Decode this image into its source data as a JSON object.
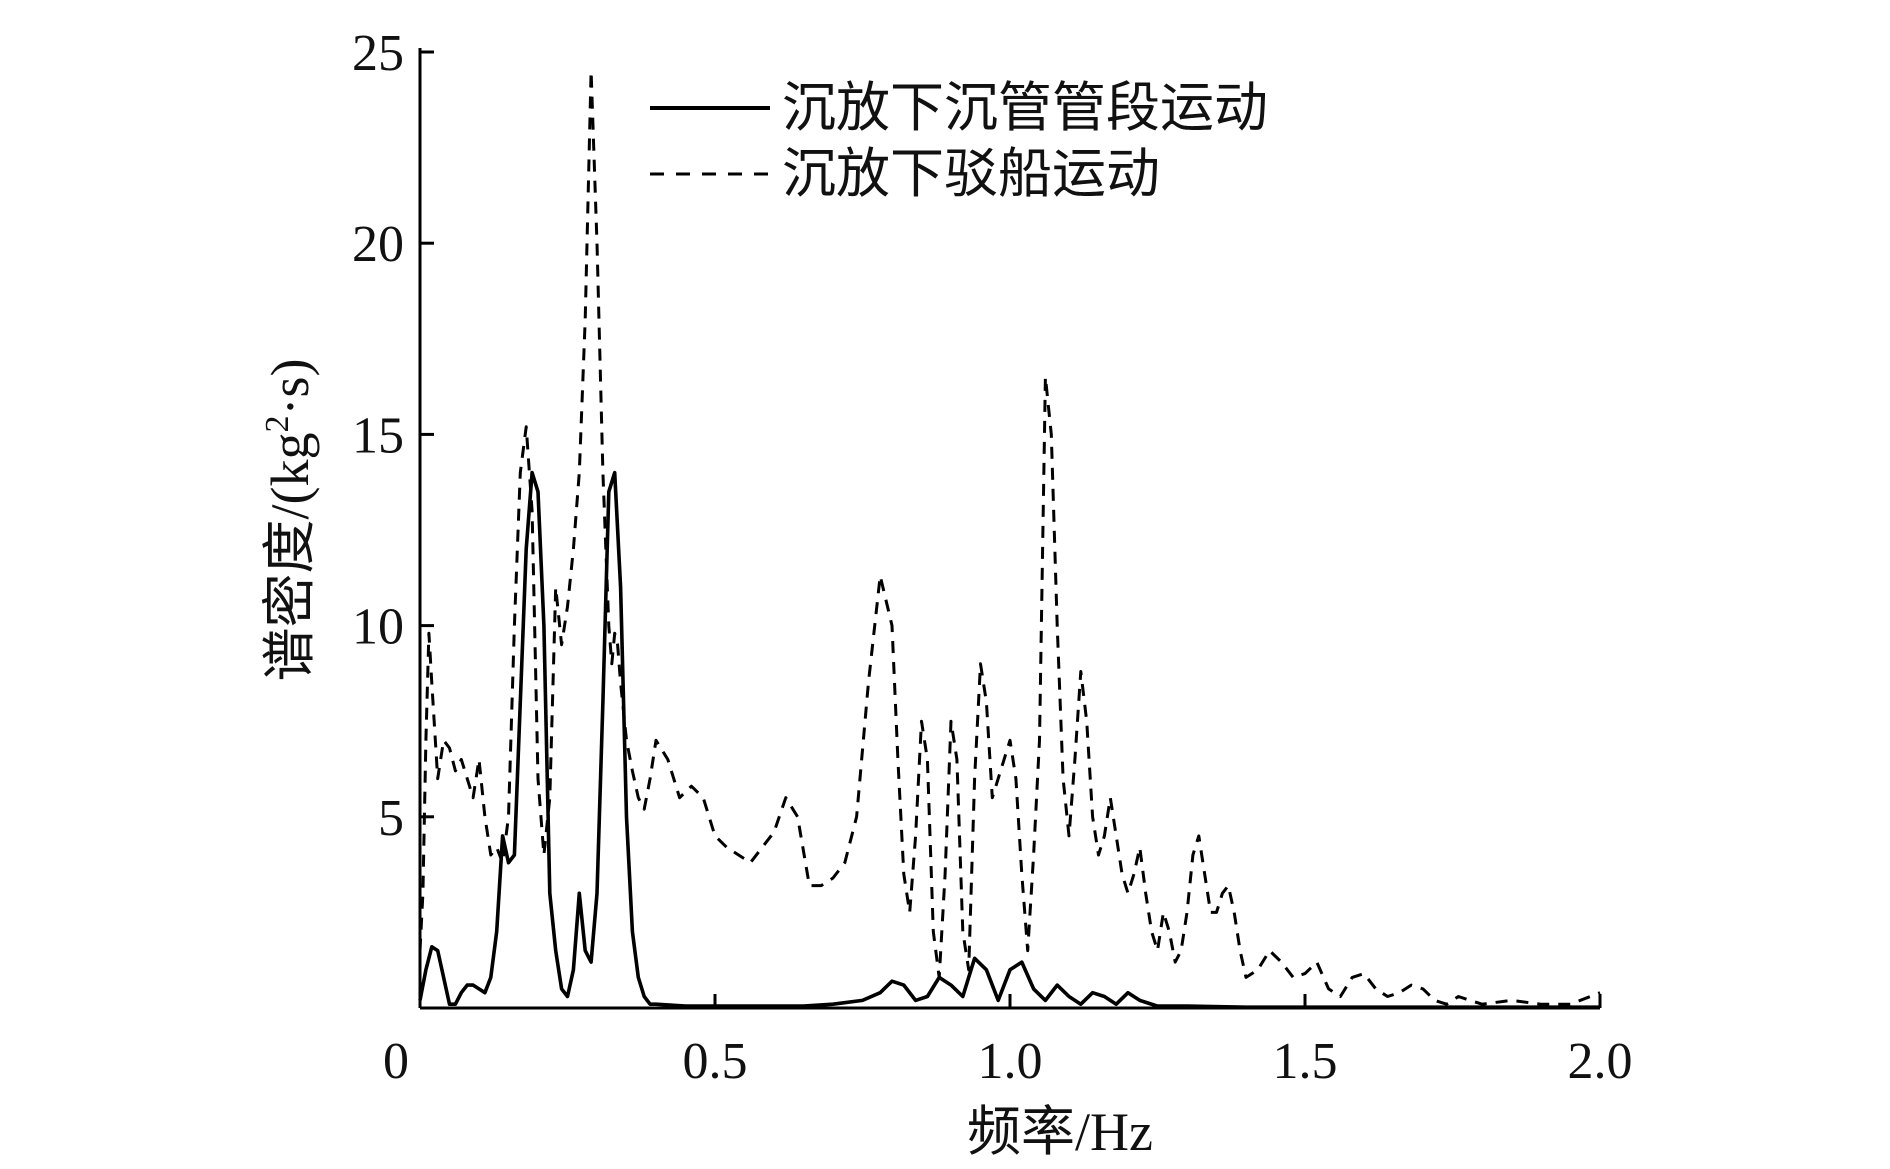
{
  "chart_data": {
    "type": "line",
    "xlabel": "频率/Hz",
    "ylabel": "谱密度/(kg²·s)",
    "ylabel_parts": {
      "main": "谱密度/(kg",
      "sup": "2",
      "tail": "·s)"
    },
    "xlim": [
      0,
      2.0
    ],
    "ylim": [
      0,
      25
    ],
    "x_ticks": [
      0,
      0.5,
      1.0,
      1.5,
      2.0
    ],
    "x_tick_labels": [
      "0",
      "0.5",
      "1.0",
      "1.5",
      "2.0"
    ],
    "y_ticks": [
      5,
      10,
      15,
      20,
      25
    ],
    "y_tick_labels": [
      "5",
      "10",
      "15",
      "20",
      "25"
    ],
    "legend_position": "top",
    "series": [
      {
        "name": "沉放下沉管管段运动",
        "style": "solid",
        "color": "#000000",
        "x": [
          0,
          0.01,
          0.02,
          0.03,
          0.04,
          0.05,
          0.06,
          0.07,
          0.08,
          0.09,
          0.1,
          0.11,
          0.12,
          0.13,
          0.14,
          0.15,
          0.16,
          0.17,
          0.18,
          0.19,
          0.2,
          0.21,
          0.22,
          0.23,
          0.24,
          0.25,
          0.26,
          0.27,
          0.28,
          0.29,
          0.3,
          0.31,
          0.32,
          0.33,
          0.34,
          0.35,
          0.36,
          0.37,
          0.38,
          0.39,
          0.4,
          0.45,
          0.5,
          0.55,
          0.6,
          0.65,
          0.7,
          0.75,
          0.78,
          0.8,
          0.82,
          0.84,
          0.86,
          0.88,
          0.9,
          0.92,
          0.94,
          0.96,
          0.98,
          1.0,
          1.02,
          1.04,
          1.06,
          1.08,
          1.1,
          1.12,
          1.14,
          1.16,
          1.18,
          1.2,
          1.22,
          1.25,
          1.3,
          1.4,
          1.5,
          1.6,
          1.7,
          1.8,
          1.9,
          2.0
        ],
        "y": [
          0.2,
          1.0,
          1.6,
          1.5,
          0.8,
          0.1,
          0.1,
          0.4,
          0.6,
          0.6,
          0.5,
          0.4,
          0.8,
          2.0,
          4.5,
          3.8,
          4.0,
          8.0,
          12.0,
          14.0,
          13.5,
          10.0,
          3.0,
          1.5,
          0.5,
          0.3,
          1.0,
          3.0,
          1.5,
          1.2,
          3.0,
          8.0,
          13.5,
          14.0,
          11.0,
          5.0,
          2.0,
          0.8,
          0.3,
          0.1,
          0.1,
          0.05,
          0.05,
          0.05,
          0.05,
          0.05,
          0.1,
          0.2,
          0.4,
          0.7,
          0.6,
          0.2,
          0.3,
          0.8,
          0.6,
          0.3,
          1.3,
          1.0,
          0.2,
          1.0,
          1.2,
          0.5,
          0.2,
          0.6,
          0.3,
          0.1,
          0.4,
          0.3,
          0.1,
          0.4,
          0.2,
          0.05,
          0.05,
          0.02,
          0.02,
          0.02,
          0.02,
          0.02,
          0.02,
          0.02
        ]
      },
      {
        "name": "沉放下驳船运动",
        "style": "dashed",
        "color": "#000000",
        "x": [
          0,
          0.005,
          0.01,
          0.015,
          0.02,
          0.03,
          0.04,
          0.05,
          0.06,
          0.07,
          0.08,
          0.09,
          0.1,
          0.11,
          0.12,
          0.13,
          0.14,
          0.15,
          0.16,
          0.17,
          0.18,
          0.19,
          0.2,
          0.21,
          0.22,
          0.23,
          0.24,
          0.25,
          0.26,
          0.27,
          0.28,
          0.29,
          0.3,
          0.31,
          0.32,
          0.325,
          0.33,
          0.335,
          0.34,
          0.35,
          0.36,
          0.37,
          0.38,
          0.39,
          0.4,
          0.42,
          0.44,
          0.46,
          0.48,
          0.5,
          0.52,
          0.54,
          0.56,
          0.58,
          0.6,
          0.62,
          0.64,
          0.66,
          0.68,
          0.7,
          0.72,
          0.74,
          0.76,
          0.78,
          0.8,
          0.81,
          0.82,
          0.83,
          0.84,
          0.85,
          0.86,
          0.87,
          0.88,
          0.89,
          0.9,
          0.91,
          0.92,
          0.93,
          0.94,
          0.95,
          0.96,
          0.97,
          0.98,
          0.99,
          1.0,
          1.01,
          1.02,
          1.03,
          1.04,
          1.05,
          1.06,
          1.07,
          1.08,
          1.09,
          1.1,
          1.11,
          1.12,
          1.13,
          1.14,
          1.15,
          1.16,
          1.17,
          1.18,
          1.19,
          1.2,
          1.21,
          1.22,
          1.23,
          1.24,
          1.25,
          1.26,
          1.27,
          1.28,
          1.29,
          1.3,
          1.31,
          1.32,
          1.33,
          1.34,
          1.35,
          1.36,
          1.37,
          1.38,
          1.39,
          1.4,
          1.42,
          1.44,
          1.46,
          1.48,
          1.5,
          1.52,
          1.54,
          1.56,
          1.58,
          1.6,
          1.62,
          1.64,
          1.66,
          1.68,
          1.7,
          1.72,
          1.74,
          1.76,
          1.78,
          1.8,
          1.85,
          1.9,
          1.95,
          2.0
        ],
        "y": [
          1.5,
          3.0,
          7.0,
          9.8,
          8.5,
          6.0,
          7.0,
          6.8,
          6.2,
          6.5,
          6.0,
          5.5,
          6.5,
          5.0,
          4.0,
          4.2,
          3.8,
          5.0,
          10.0,
          14.0,
          15.2,
          13.0,
          6.0,
          4.0,
          5.5,
          11.0,
          9.5,
          10.5,
          12.0,
          14.0,
          18.0,
          24.5,
          20.0,
          14.0,
          10.0,
          9.0,
          9.8,
          9.5,
          8.5,
          7.0,
          6.2,
          5.5,
          5.2,
          6.0,
          7.0,
          6.5,
          5.5,
          5.8,
          5.5,
          4.5,
          4.2,
          4.0,
          3.8,
          4.2,
          4.6,
          5.5,
          5.0,
          3.2,
          3.2,
          3.4,
          3.8,
          5.0,
          8.5,
          11.3,
          10.0,
          6.5,
          3.5,
          2.5,
          4.5,
          7.5,
          6.5,
          2.0,
          0.8,
          3.5,
          7.5,
          6.5,
          2.0,
          1.0,
          6.0,
          9.0,
          8.0,
          5.5,
          6.0,
          6.5,
          7.0,
          6.0,
          3.5,
          1.5,
          4.0,
          7.0,
          16.5,
          15.0,
          10.0,
          6.0,
          4.5,
          6.5,
          8.8,
          7.5,
          5.0,
          4.0,
          4.5,
          5.5,
          4.5,
          3.5,
          3.0,
          3.5,
          4.2,
          3.0,
          2.0,
          1.5,
          2.5,
          2.0,
          1.2,
          1.5,
          2.5,
          4.0,
          4.5,
          3.5,
          2.5,
          2.5,
          3.0,
          3.2,
          2.5,
          1.5,
          0.8,
          1.0,
          1.5,
          1.2,
          0.8,
          0.9,
          1.2,
          0.5,
          0.3,
          0.8,
          0.9,
          0.5,
          0.3,
          0.4,
          0.6,
          0.5,
          0.2,
          0.1,
          0.3,
          0.2,
          0.1,
          0.2,
          0.1,
          0.1,
          0.4
        ]
      }
    ]
  }
}
